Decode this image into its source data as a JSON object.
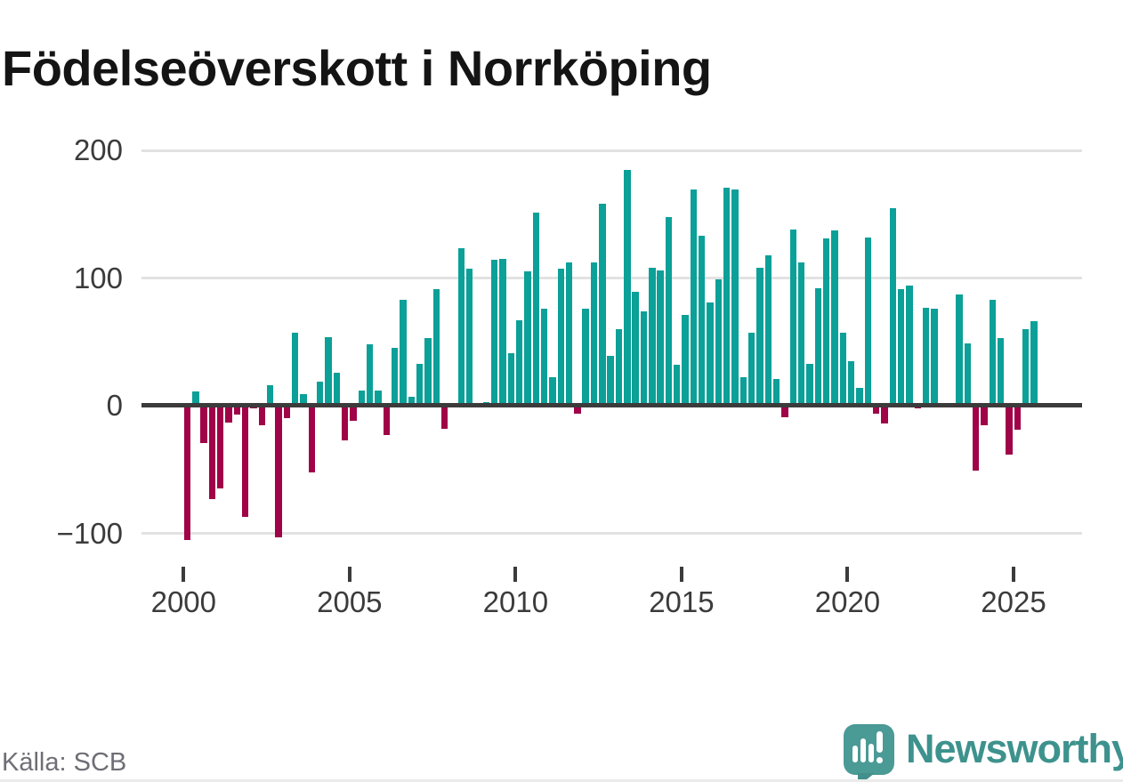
{
  "header": {
    "title": "Födelseöverskott i Norrköping"
  },
  "footer": {
    "source": "Källa: SCB",
    "brand_name": "Newsworthy"
  },
  "colors": {
    "positive_bar": "#0ba098",
    "negative_bar": "#a00347",
    "axis_line": "#3b3b3b",
    "gridline": "#e2e2e2",
    "tick_label": "#3b3b3b",
    "source_text": "#6e6e76",
    "brand_text": "#3e928d",
    "logo_background": "#4a9a96"
  },
  "chart_data": {
    "type": "bar",
    "title": "Födelseöverskott i Norrköping",
    "frequency": "quarterly",
    "start": "2000-Q1",
    "end": "2025-Q3",
    "xlabel": "",
    "ylabel": "",
    "x_tick_labels": [
      "2000",
      "2005",
      "2010",
      "2015",
      "2020",
      "2025"
    ],
    "y_ticks": [
      200,
      100,
      0,
      -100
    ],
    "y_tick_labels": [
      "200",
      "100",
      "0",
      "−100"
    ],
    "ylim": [
      -125,
      210
    ],
    "grid": "horizontal",
    "legend": "none",
    "series": [
      {
        "name": "Födelseöverskott",
        "values": [
          -105,
          11,
          -29,
          -73,
          -65,
          -13,
          -7,
          -87,
          -2,
          -15,
          16,
          -103,
          -10,
          57,
          9,
          -52,
          19,
          54,
          26,
          -27,
          -12,
          12,
          48,
          12,
          -23,
          45,
          83,
          7,
          33,
          53,
          91,
          -18,
          2,
          123,
          107,
          0,
          3,
          114,
          115,
          41,
          67,
          105,
          151,
          76,
          22,
          107,
          112,
          -6,
          76,
          112,
          158,
          39,
          60,
          185,
          89,
          74,
          108,
          106,
          148,
          32,
          71,
          169,
          133,
          81,
          99,
          171,
          169,
          22,
          57,
          108,
          118,
          21,
          -9,
          138,
          112,
          33,
          92,
          131,
          137,
          57,
          35,
          14,
          132,
          -6,
          -14,
          155,
          91,
          94,
          -2,
          77,
          76,
          2,
          0,
          87,
          49,
          -51,
          -15,
          83,
          53,
          -38,
          -19,
          60,
          66
        ]
      }
    ]
  }
}
